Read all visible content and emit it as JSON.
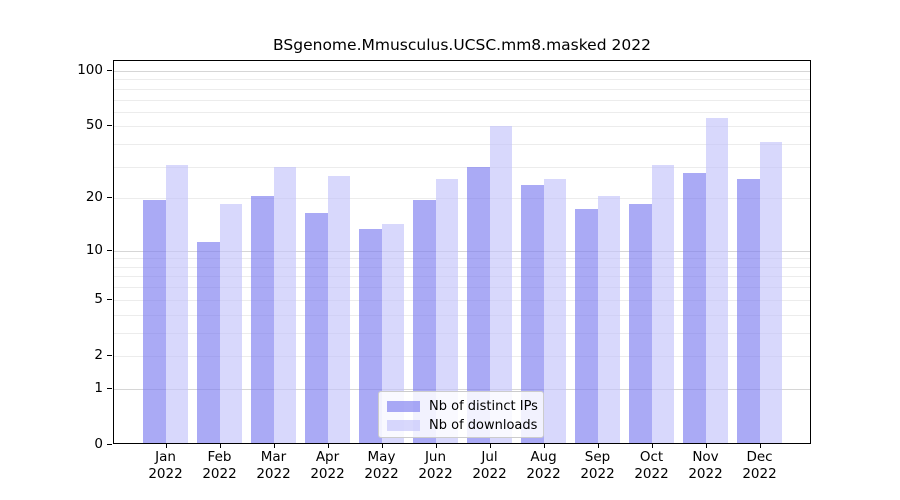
{
  "chart_data": {
    "type": "bar",
    "title": "BSgenome.Mmusculus.UCSC.mm8.masked 2022",
    "categories": [
      "Jan",
      "Feb",
      "Mar",
      "Apr",
      "May",
      "Jun",
      "Jul",
      "Aug",
      "Sep",
      "Oct",
      "Nov",
      "Dec"
    ],
    "category_second_line": "2022",
    "series": [
      {
        "name": "Nb of distinct IPs",
        "color": "rgba(124,124,240,0.65)",
        "values": [
          19,
          11,
          20,
          16,
          13,
          19,
          29,
          23,
          17,
          18,
          27,
          25
        ]
      },
      {
        "name": "Nb of downloads",
        "color": "rgba(195,195,250,0.65)",
        "values": [
          30,
          18,
          29,
          26,
          14,
          25,
          49,
          25,
          20,
          30,
          54,
          40
        ]
      }
    ],
    "y_axis": {
      "scale": "log1p",
      "range": [
        0,
        100
      ],
      "tick_values": [
        0,
        1,
        2,
        5,
        10,
        20,
        50,
        100
      ],
      "tick_labels": [
        "0",
        "1",
        "2",
        "5",
        "10",
        "20",
        "50",
        "100"
      ]
    },
    "grid": {
      "on": true,
      "minor_values": [
        2,
        3,
        4,
        5,
        6,
        7,
        8,
        9,
        20,
        30,
        40,
        50,
        60,
        70,
        80,
        90
      ],
      "major_values": [
        1,
        10,
        100
      ],
      "minor_color": "#ececec",
      "major_color": "#d6d6d6"
    },
    "legend": {
      "position": "bottom-center",
      "entries": [
        "Nb of distinct IPs",
        "Nb of downloads"
      ]
    }
  }
}
